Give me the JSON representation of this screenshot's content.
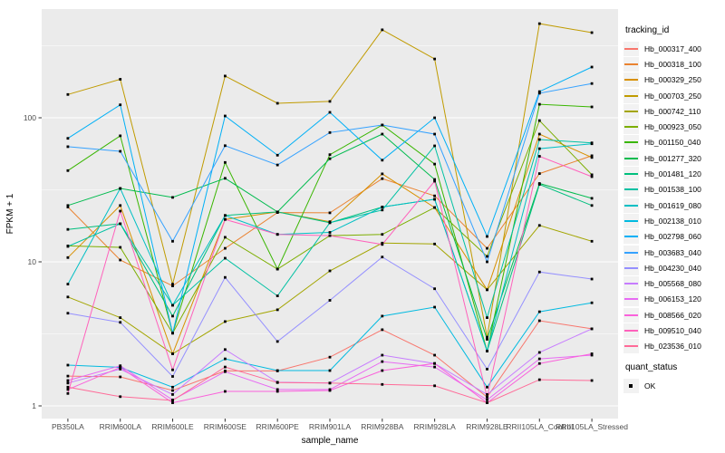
{
  "chart_data": {
    "type": "line",
    "title": "",
    "xlabel": "sample_name",
    "ylabel": "FPKM + 1",
    "y_scale": "log10",
    "ylim": [
      0.85,
      570
    ],
    "y_major_ticks": [
      1,
      10,
      100
    ],
    "y_minor_ticks": [
      3.162,
      31.62,
      316.2
    ],
    "grid": true,
    "legend_title": "tracking_id",
    "legend2_title": "quant_status",
    "legend2_items": [
      "OK"
    ],
    "legend_position": "right",
    "categories": [
      "PB350LA",
      "RRIM600LA",
      "RRIM600LE",
      "RRIM600SE",
      "RRIM600PE",
      "RRIM901LA",
      "RRIM928BA",
      "RRIM928LA",
      "RRIM928LE",
      "RRII105LA_Control",
      "RRII105LA_Stressed"
    ],
    "series": [
      {
        "name": "Hb_000317_400",
        "color": "#F8766D",
        "values": [
          1.61,
          1.59,
          1.28,
          1.75,
          1.75,
          2.18,
          3.38,
          2.25,
          1.15,
          3.9,
          3.43
        ]
      },
      {
        "name": "Hb_000318_100",
        "color": "#EA8331",
        "values": [
          24,
          10.3,
          6.8,
          12.4,
          22,
          21.9,
          37.8,
          28.7,
          12.4,
          41,
          54.5
        ]
      },
      {
        "name": "Hb_000329_250",
        "color": "#D89000",
        "values": [
          10.7,
          24.6,
          2.3,
          19.7,
          22.2,
          19,
          40.8,
          23.8,
          6.4,
          77,
          53
        ]
      },
      {
        "name": "Hb_000703_250",
        "color": "#C09B00",
        "values": [
          145,
          185,
          7,
          195,
          126,
          130,
          408,
          256,
          3,
          450,
          390
        ]
      },
      {
        "name": "Hb_000742_110",
        "color": "#A3A500",
        "values": [
          5.7,
          4.1,
          2.3,
          3.85,
          4.65,
          8.65,
          13.5,
          13.3,
          6.4,
          17.9,
          13.9
        ]
      },
      {
        "name": "Hb_000923_050",
        "color": "#7CAE00",
        "values": [
          12.9,
          12.6,
          3.2,
          14.8,
          8.9,
          15.2,
          15.5,
          23.8,
          10.9,
          95.6,
          40.2
        ]
      },
      {
        "name": "Hb_001150_040",
        "color": "#39B600",
        "values": [
          43,
          75,
          3.2,
          49,
          8.9,
          55.5,
          89,
          47.7,
          2.4,
          124,
          119
        ]
      },
      {
        "name": "Hb_001277_320",
        "color": "#00BB4E",
        "values": [
          24.6,
          32.3,
          28,
          38,
          22.2,
          52,
          77,
          37.3,
          2.9,
          35,
          27.6
        ]
      },
      {
        "name": "Hb_001481_120",
        "color": "#00BF7D",
        "values": [
          16.8,
          18.4,
          4.2,
          21,
          22.2,
          18.7,
          24,
          27.2,
          2.4,
          34.5,
          24.6
        ]
      },
      {
        "name": "Hb_001538_100",
        "color": "#00C1A3",
        "values": [
          12.8,
          18.4,
          5,
          10.6,
          5.8,
          18.7,
          22.9,
          63.8,
          4.1,
          70.6,
          67
        ]
      },
      {
        "name": "Hb_001619_080",
        "color": "#00BFC4",
        "values": [
          7,
          32.3,
          5,
          21,
          15.5,
          16,
          24,
          27.2,
          2.4,
          61,
          66
        ]
      },
      {
        "name": "Hb_002138_010",
        "color": "#00BAE0",
        "values": [
          1.92,
          1.85,
          1.35,
          2.12,
          1.76,
          1.76,
          4.2,
          4.85,
          1.35,
          4.5,
          5.2
        ]
      },
      {
        "name": "Hb_002798_060",
        "color": "#00B0F6",
        "values": [
          72,
          123,
          3.2,
          103,
          55,
          109,
          50.8,
          100,
          15,
          152,
          225
        ]
      },
      {
        "name": "Hb_003683_040",
        "color": "#35A2FF",
        "values": [
          63,
          58.5,
          13.9,
          64,
          47,
          79,
          89,
          77,
          10,
          148,
          173
        ]
      },
      {
        "name": "Hb_004230_040",
        "color": "#9590FF",
        "values": [
          4.4,
          3.8,
          1.6,
          7.8,
          2.8,
          5.4,
          10.8,
          6.5,
          1.8,
          8.5,
          7.6
        ]
      },
      {
        "name": "Hb_005568_080",
        "color": "#C77CFF",
        "values": [
          1.44,
          1.8,
          1.2,
          2.46,
          1.46,
          1.44,
          2.25,
          1.97,
          1.2,
          2.35,
          3.43
        ]
      },
      {
        "name": "Hb_006153_120",
        "color": "#E76BF3",
        "values": [
          1.5,
          1.9,
          1.1,
          1.73,
          1.3,
          1.3,
          2.03,
          1.86,
          1.1,
          2.12,
          2.25
        ]
      },
      {
        "name": "Hb_008566_020",
        "color": "#FA62DB",
        "values": [
          1.3,
          1.85,
          1.05,
          1.26,
          1.26,
          1.28,
          1.76,
          1.97,
          1.05,
          1.97,
          2.3
        ]
      },
      {
        "name": "Hb_009510_040",
        "color": "#FF62BC",
        "values": [
          1.22,
          22.5,
          1.78,
          19.7,
          15.5,
          15.2,
          13.2,
          36.3,
          1.15,
          54,
          39
        ]
      },
      {
        "name": "Hb_023536_010",
        "color": "#FF6A98",
        "values": [
          1.35,
          1.16,
          1.09,
          1.86,
          1.45,
          1.44,
          1.41,
          1.38,
          1.05,
          1.52,
          1.5
        ]
      }
    ],
    "style": {
      "panel_bg": "#EBEBEB",
      "grid_color": "#FFFFFF",
      "point_color": "#000000",
      "tick_color": "#333333",
      "text_color": "#4D4D4D",
      "key_bg": "#F2F2F2"
    }
  }
}
